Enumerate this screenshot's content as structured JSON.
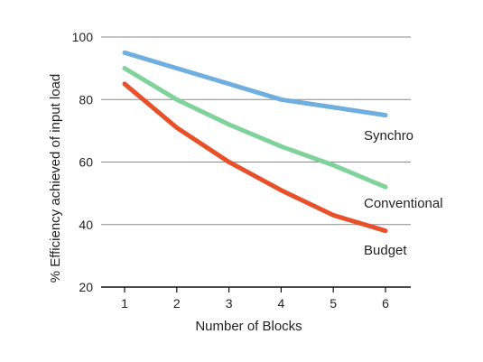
{
  "chart_data": {
    "type": "line",
    "x": [
      1,
      2,
      3,
      4,
      5,
      6
    ],
    "series": [
      {
        "name": "Synchro",
        "values": [
          95,
          90,
          85,
          80,
          77.5,
          75
        ],
        "color": "#6fafe0"
      },
      {
        "name": "Conventional",
        "values": [
          90,
          80,
          72,
          65,
          59,
          52
        ],
        "color": "#7fd39a"
      },
      {
        "name": "Budget",
        "values": [
          85,
          71,
          60,
          51,
          43,
          38
        ],
        "color": "#e8502a"
      }
    ],
    "xlabel": "Number of Blocks",
    "ylabel": "% Efficiency achieved of input load",
    "ylim": [
      20,
      100
    ],
    "yticks": [
      20,
      40,
      60,
      80,
      100
    ],
    "xticks": [
      1,
      2,
      3,
      4,
      5,
      6
    ],
    "grid": "horizontal",
    "legend": "inline labels at line ends"
  }
}
